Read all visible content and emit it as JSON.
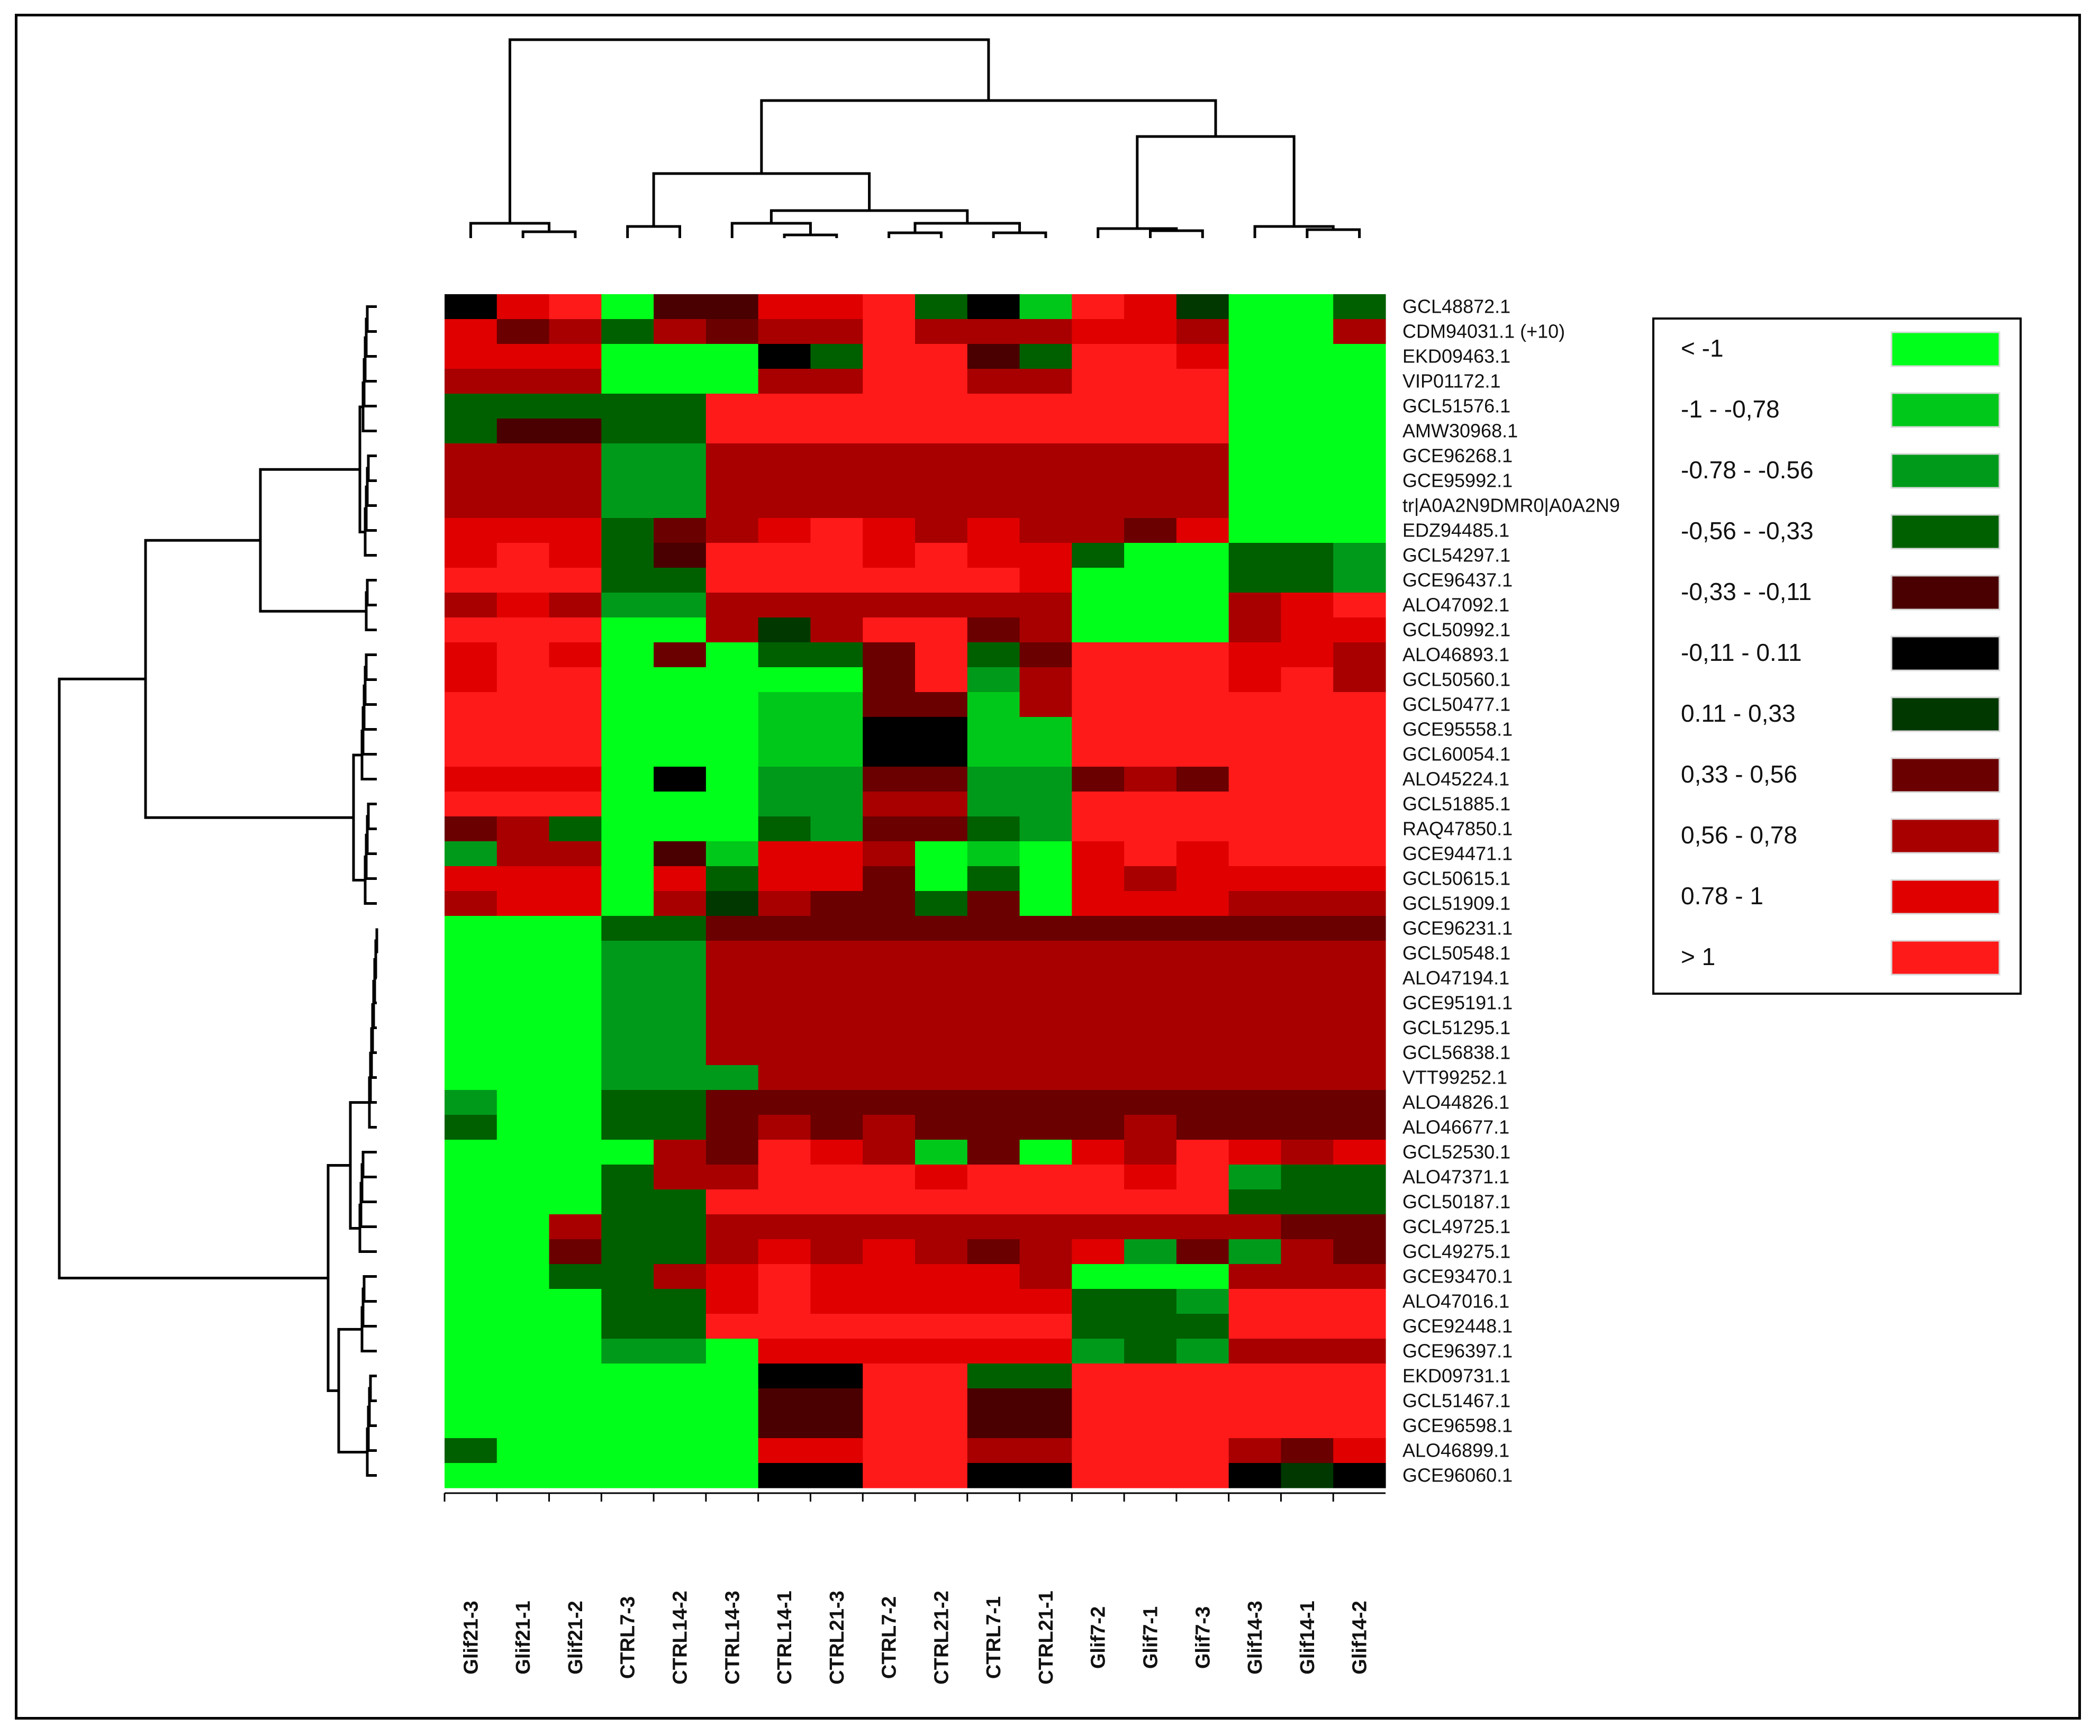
{
  "chart_data": {
    "type": "heatmap",
    "title": "",
    "columns": [
      "Glif21-3",
      "Glif21-1",
      "Glif21-2",
      "CTRL7-3",
      "CTRL14-2",
      "CTRL14-3",
      "CTRL14-1",
      "CTRL21-3",
      "CTRL7-2",
      "CTRL21-2",
      "CTRL7-1",
      "CTRL21-1",
      "Glif7-2",
      "Glif7-1",
      "Glif7-3",
      "Glif14-3",
      "Glif14-1",
      "Glif14-2"
    ],
    "row_labels": [
      "GCL48872.1",
      "CDM94031.1 (+10)",
      "EKD09463.1",
      "VIP01172.1",
      "GCL51576.1",
      "AMW30968.1",
      "GCE96268.1",
      "GCE95992.1",
      "tr|A0A2N9DMR0|A0A2N9",
      "EDZ94485.1",
      "GCL54297.1",
      "GCE96437.1",
      "ALO47092.1",
      "GCL50992.1",
      "ALO46893.1",
      "GCL50560.1",
      "GCL50477.1",
      "GCE95558.1",
      "GCL60054.1",
      "ALO45224.1",
      "GCL51885.1",
      "RAQ47850.1",
      "GCE94471.1",
      "GCL50615.1",
      "GCL51909.1",
      "GCE96231.1",
      "GCL50548.1",
      "ALO47194.1",
      "GCE95191.1",
      "GCL51295.1",
      "GCL56838.1",
      "VTT99252.1",
      "ALO44826.1",
      "ALO46677.1",
      "GCL52530.1",
      "ALO47371.1",
      "GCL50187.1",
      "GCL49725.1",
      "GCL49275.1",
      "GCE93470.1",
      "ALO47016.1",
      "GCE92448.1",
      "GCE96397.1",
      "EKD09731.1",
      "GCL51467.1",
      "GCE96598.1",
      "ALO46899.1",
      "GCE96060.1"
    ],
    "values": [
      [
        0.1,
        0.9,
        1.2,
        -1.2,
        -0.2,
        -0.2,
        0.9,
        0.9,
        1.1,
        -0.4,
        0.1,
        -1.0,
        1.2,
        0.9,
        0.3,
        -1.2,
        -1.2,
        -0.5
      ],
      [
        0.9,
        0.5,
        0.7,
        -0.4,
        0.6,
        0.5,
        0.6,
        0.6,
        1.1,
        0.6,
        0.7,
        0.6,
        0.9,
        0.9,
        0.7,
        -1.2,
        -1.2,
        0.7
      ],
      [
        0.9,
        0.8,
        0.9,
        -1.2,
        -1.2,
        -1.2,
        0.0,
        -0.4,
        1.2,
        1.1,
        -0.2,
        -0.4,
        1.2,
        1.1,
        0.9,
        -1.2,
        -1.2,
        -1.2
      ],
      [
        0.7,
        0.7,
        0.7,
        -1.2,
        -1.2,
        -1.2,
        0.7,
        0.7,
        1.1,
        1.1,
        0.6,
        0.7,
        1.1,
        1.1,
        1.1,
        -1.2,
        -1.2,
        -1.2
      ],
      [
        -0.5,
        -0.5,
        -0.4,
        -0.5,
        -0.5,
        1.1,
        1.1,
        1.1,
        1.1,
        1.1,
        1.1,
        1.1,
        1.1,
        1.1,
        1.1,
        -1.2,
        -1.2,
        -1.2
      ],
      [
        -0.5,
        -0.3,
        -0.3,
        -0.4,
        -0.4,
        1.1,
        1.1,
        1.1,
        1.1,
        1.1,
        1.1,
        1.1,
        1.1,
        1.1,
        1.1,
        -1.2,
        -1.2,
        -1.2
      ],
      [
        0.7,
        0.7,
        0.7,
        -0.7,
        -0.7,
        0.7,
        0.7,
        0.7,
        0.7,
        0.7,
        0.7,
        0.7,
        0.7,
        0.7,
        0.7,
        -1.2,
        -1.2,
        -1.2
      ],
      [
        0.7,
        0.7,
        0.7,
        -0.7,
        -0.7,
        0.7,
        0.7,
        0.7,
        0.7,
        0.7,
        0.7,
        0.7,
        0.7,
        0.7,
        0.7,
        -1.2,
        -1.2,
        -1.2
      ],
      [
        0.7,
        0.7,
        0.7,
        -0.7,
        -0.7,
        0.7,
        0.7,
        0.7,
        0.7,
        0.7,
        0.7,
        0.7,
        0.7,
        0.7,
        0.7,
        -1.2,
        -1.2,
        -1.2
      ],
      [
        0.9,
        0.8,
        0.8,
        -0.4,
        0.4,
        0.7,
        0.9,
        1.1,
        0.9,
        0.6,
        0.8,
        0.6,
        0.7,
        0.4,
        0.8,
        -1.2,
        -1.2,
        -1.2
      ],
      [
        0.9,
        1.1,
        0.9,
        -0.4,
        -0.2,
        1.1,
        1.1,
        1.1,
        0.9,
        1.1,
        0.9,
        0.8,
        -0.4,
        -1.2,
        -1.2,
        -0.5,
        -0.5,
        -0.6
      ],
      [
        1.1,
        1.1,
        1.1,
        -0.5,
        -0.4,
        1.1,
        1.1,
        1.1,
        1.1,
        1.1,
        1.1,
        0.9,
        -1.2,
        -1.2,
        -1.2,
        -0.4,
        -0.5,
        -0.7
      ],
      [
        0.7,
        0.9,
        0.7,
        -0.7,
        -0.7,
        0.7,
        0.7,
        0.7,
        0.7,
        0.7,
        0.7,
        0.7,
        -1.2,
        -1.2,
        -1.2,
        0.7,
        0.9,
        1.1
      ],
      [
        1.1,
        1.1,
        1.1,
        -1.2,
        -1.2,
        0.7,
        0.2,
        0.7,
        1.1,
        1.1,
        0.5,
        0.7,
        -1.2,
        -1.2,
        -1.2,
        0.7,
        0.9,
        0.8
      ],
      [
        0.9,
        1.1,
        0.9,
        -1.2,
        0.4,
        -1.2,
        -0.4,
        -0.4,
        0.5,
        1.1,
        -0.5,
        0.4,
        1.2,
        1.1,
        1.1,
        0.9,
        0.8,
        0.7
      ],
      [
        0.9,
        1.1,
        1.1,
        -1.2,
        -1.2,
        -1.2,
        -1.2,
        -1.2,
        0.5,
        1.2,
        -0.6,
        0.6,
        1.2,
        1.1,
        1.1,
        0.9,
        1.1,
        0.7
      ],
      [
        1.1,
        1.1,
        1.1,
        -1.2,
        -1.2,
        -1.2,
        -0.9,
        -0.9,
        0.4,
        0.5,
        -0.9,
        0.6,
        1.1,
        1.1,
        1.1,
        1.1,
        1.1,
        1.1
      ],
      [
        1.1,
        1.1,
        1.1,
        -1.2,
        -1.2,
        -1.2,
        -0.9,
        -0.9,
        0.0,
        0.0,
        -0.9,
        -0.9,
        1.1,
        1.1,
        1.1,
        1.1,
        1.1,
        1.1
      ],
      [
        1.1,
        1.1,
        1.1,
        -1.2,
        -1.2,
        -1.2,
        -0.9,
        -0.9,
        0.0,
        0.0,
        -0.9,
        -0.9,
        1.1,
        1.1,
        1.1,
        1.1,
        1.1,
        1.1
      ],
      [
        0.9,
        0.9,
        0.9,
        -1.2,
        0.1,
        -1.2,
        -0.7,
        -0.7,
        0.5,
        0.4,
        -0.7,
        -0.7,
        0.4,
        0.7,
        0.4,
        1.1,
        1.1,
        1.1
      ],
      [
        1.1,
        1.1,
        1.1,
        -1.2,
        -1.2,
        -1.2,
        -0.6,
        -0.6,
        0.7,
        0.6,
        -0.7,
        -0.7,
        1.2,
        1.2,
        1.2,
        1.2,
        1.2,
        1.2
      ],
      [
        0.5,
        0.7,
        -0.5,
        -1.2,
        -1.2,
        -1.2,
        -0.5,
        -0.7,
        0.5,
        0.4,
        -0.5,
        -0.7,
        1.2,
        1.2,
        1.2,
        1.2,
        1.2,
        1.2
      ],
      [
        -0.7,
        0.7,
        0.6,
        -1.2,
        -0.3,
        -0.9,
        0.9,
        0.9,
        0.6,
        -1.2,
        -0.9,
        -1.2,
        0.9,
        1.1,
        0.9,
        1.2,
        1.2,
        1.2
      ],
      [
        0.9,
        0.9,
        0.9,
        -1.2,
        0.9,
        -0.4,
        0.9,
        0.9,
        0.4,
        -1.2,
        -0.5,
        -1.2,
        0.9,
        0.7,
        0.9,
        0.9,
        0.9,
        0.9
      ],
      [
        0.7,
        0.9,
        0.9,
        -1.2,
        0.7,
        0.2,
        0.7,
        0.5,
        0.4,
        -0.4,
        0.4,
        -1.2,
        0.8,
        0.9,
        0.8,
        0.7,
        0.6,
        0.7
      ],
      [
        -1.2,
        -1.2,
        -1.2,
        -0.5,
        -0.4,
        0.5,
        0.5,
        0.5,
        0.5,
        0.5,
        0.5,
        0.5,
        0.5,
        0.5,
        0.5,
        0.5,
        0.5,
        0.5
      ],
      [
        -1.2,
        -1.2,
        -1.2,
        -0.7,
        -0.7,
        0.7,
        0.7,
        0.7,
        0.7,
        0.7,
        0.7,
        0.7,
        0.7,
        0.7,
        0.7,
        0.7,
        0.7,
        0.7
      ],
      [
        -1.2,
        -1.2,
        -1.2,
        -0.7,
        -0.7,
        0.7,
        0.7,
        0.7,
        0.7,
        0.7,
        0.7,
        0.7,
        0.7,
        0.7,
        0.7,
        0.7,
        0.7,
        0.7
      ],
      [
        -1.2,
        -1.2,
        -1.2,
        -0.7,
        -0.7,
        0.7,
        0.7,
        0.7,
        0.7,
        0.7,
        0.7,
        0.7,
        0.7,
        0.7,
        0.7,
        0.7,
        0.7,
        0.7
      ],
      [
        -1.2,
        -1.2,
        -1.2,
        -0.7,
        -0.7,
        0.7,
        0.7,
        0.7,
        0.7,
        0.7,
        0.7,
        0.7,
        0.7,
        0.7,
        0.7,
        0.7,
        0.7,
        0.7
      ],
      [
        -1.2,
        -1.2,
        -1.2,
        -0.7,
        -0.7,
        0.7,
        0.7,
        0.7,
        0.7,
        0.7,
        0.7,
        0.7,
        0.7,
        0.7,
        0.7,
        0.7,
        0.7,
        0.7
      ],
      [
        -1.2,
        -1.2,
        -1.2,
        -0.7,
        -0.7,
        -0.7,
        0.7,
        0.7,
        0.7,
        0.7,
        0.7,
        0.7,
        0.7,
        0.7,
        0.7,
        0.7,
        0.7,
        0.7
      ],
      [
        -0.7,
        -1.2,
        -1.2,
        -0.4,
        -0.5,
        0.4,
        0.5,
        0.5,
        0.5,
        0.5,
        0.4,
        0.5,
        0.5,
        0.5,
        0.5,
        0.5,
        0.4,
        0.5
      ],
      [
        -0.4,
        -1.2,
        -1.2,
        -0.5,
        -0.4,
        0.5,
        0.7,
        0.5,
        0.6,
        0.5,
        0.5,
        0.5,
        0.5,
        0.6,
        0.5,
        0.5,
        0.5,
        0.5
      ],
      [
        -1.2,
        -1.2,
        -1.2,
        -1.2,
        0.7,
        0.5,
        1.1,
        0.9,
        0.7,
        -1.0,
        0.5,
        -1.2,
        0.9,
        0.7,
        1.1,
        0.9,
        0.7,
        0.9
      ],
      [
        -1.2,
        -1.2,
        -1.2,
        -0.4,
        0.7,
        0.7,
        1.1,
        1.1,
        1.1,
        0.9,
        1.1,
        1.1,
        1.1,
        0.9,
        1.1,
        -0.7,
        -0.5,
        -0.4
      ],
      [
        -1.2,
        -1.2,
        -1.2,
        -0.5,
        -0.5,
        1.1,
        1.1,
        1.1,
        1.1,
        1.1,
        1.1,
        1.1,
        1.1,
        1.1,
        1.1,
        -0.5,
        -0.5,
        -0.5
      ],
      [
        -1.2,
        -1.2,
        0.7,
        -0.5,
        -0.4,
        0.7,
        0.7,
        0.7,
        0.7,
        0.7,
        0.7,
        0.7,
        0.7,
        0.7,
        0.7,
        0.7,
        0.4,
        0.5
      ],
      [
        -1.2,
        -1.2,
        0.5,
        -0.4,
        -0.5,
        0.7,
        0.9,
        0.7,
        0.9,
        0.7,
        0.5,
        0.6,
        0.9,
        -0.7,
        0.5,
        -0.7,
        0.7,
        0.4
      ],
      [
        -1.2,
        -1.2,
        -0.4,
        -0.4,
        0.6,
        0.9,
        1.1,
        0.9,
        0.9,
        0.9,
        0.9,
        0.7,
        -1.2,
        -1.2,
        -1.2,
        0.7,
        0.6,
        0.7
      ],
      [
        -1.2,
        -1.2,
        -1.2,
        -0.4,
        -0.5,
        0.9,
        1.1,
        0.9,
        0.9,
        0.9,
        0.9,
        0.9,
        -0.5,
        -0.5,
        -0.7,
        1.1,
        1.1,
        1.1
      ],
      [
        -1.2,
        -1.2,
        -1.2,
        -0.4,
        -0.4,
        1.1,
        1.1,
        1.1,
        1.1,
        1.1,
        1.1,
        1.1,
        -0.4,
        -0.5,
        -0.4,
        1.1,
        1.1,
        1.1
      ],
      [
        -1.2,
        -1.2,
        -1.2,
        -0.7,
        -0.7,
        -1.2,
        0.9,
        0.9,
        0.9,
        0.9,
        0.9,
        0.9,
        -0.7,
        -0.5,
        -0.7,
        0.7,
        0.7,
        0.7
      ],
      [
        -1.2,
        -1.2,
        -1.2,
        -1.2,
        -1.2,
        -1.2,
        0.0,
        0.0,
        1.1,
        1.2,
        -0.4,
        -0.4,
        1.1,
        1.1,
        1.1,
        1.1,
        1.1,
        1.1
      ],
      [
        -1.2,
        -1.2,
        -1.2,
        -1.2,
        -1.2,
        -1.2,
        -0.2,
        -0.2,
        1.1,
        1.1,
        -0.2,
        -0.2,
        1.1,
        1.1,
        1.1,
        1.1,
        1.1,
        1.1
      ],
      [
        -1.2,
        -1.2,
        -1.2,
        -1.2,
        -1.2,
        -1.2,
        -0.2,
        -0.2,
        1.1,
        1.1,
        -0.2,
        -0.2,
        1.1,
        1.1,
        1.1,
        1.1,
        1.1,
        1.1
      ],
      [
        -0.5,
        -1.2,
        -1.2,
        -1.2,
        -1.2,
        -1.2,
        0.9,
        0.9,
        1.1,
        1.1,
        0.6,
        0.6,
        1.1,
        1.2,
        1.2,
        0.7,
        0.5,
        0.9
      ],
      [
        -1.2,
        -1.2,
        -1.2,
        -1.2,
        -1.2,
        -1.2,
        0.0,
        0.0,
        1.1,
        1.1,
        0.0,
        0.0,
        1.1,
        1.2,
        1.2,
        0.0,
        0.2,
        0.0
      ]
    ],
    "color_scale": [
      {
        "label": "< -1",
        "color": "#00ff1a"
      },
      {
        "label": "-1 - -0,78",
        "color": "#00c81a"
      },
      {
        "label": "-0.78 - -0.56",
        "color": "#009a1a"
      },
      {
        "label": "-0,56 - -0,33",
        "color": "#006000"
      },
      {
        "label": "-0,33 - -0,11",
        "color": "#4a0000"
      },
      {
        "label": "-0,11 - 0.11",
        "color": "#000000"
      },
      {
        "label": "0.11 - 0,33",
        "color": "#003800"
      },
      {
        "label": "0,33 - 0,56",
        "color": "#6a0000"
      },
      {
        "label": "0,56 - 0,78",
        "color": "#a80000"
      },
      {
        "label": "0.78 - 1",
        "color": "#e00000"
      },
      {
        "label": "> 1",
        "color": "#ff1a1a"
      }
    ],
    "legend_position": "right"
  }
}
